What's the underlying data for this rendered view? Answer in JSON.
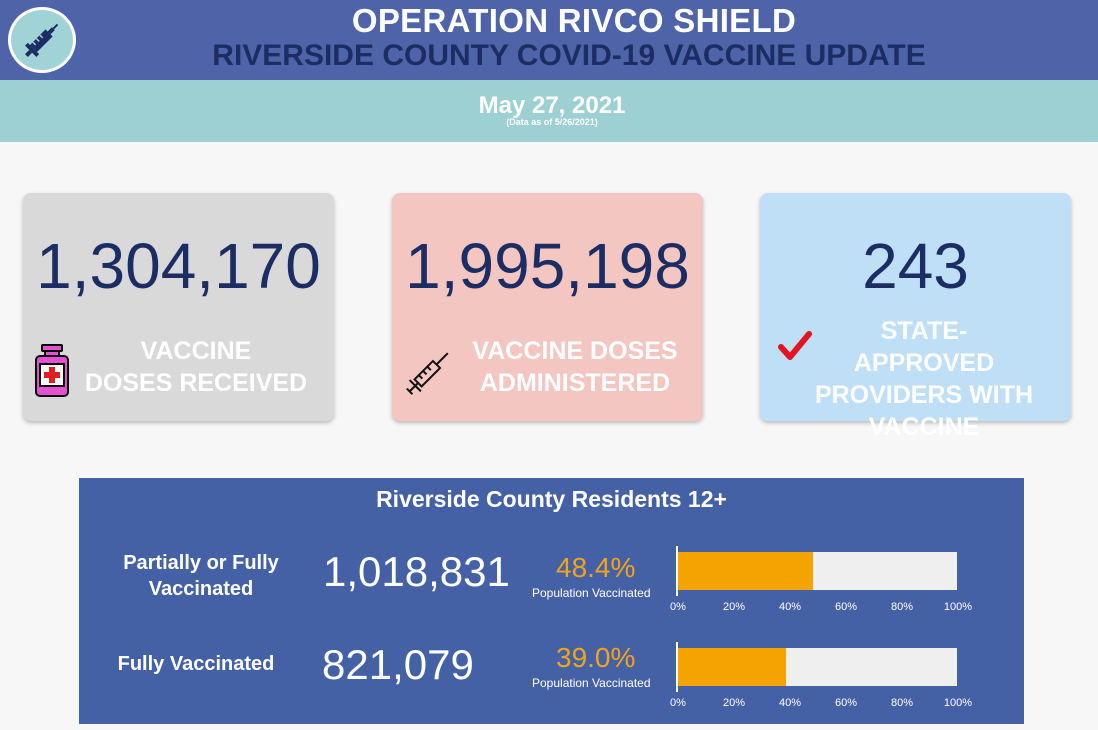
{
  "header": {
    "title": "OPERATION RIVCO SHIELD",
    "subtitle": "RIVERSIDE COUNTY COVID-19 VACCINE UPDATE",
    "logo_icon": "syringe-icon"
  },
  "date": {
    "label": "May 27, 2021",
    "note": "(Data as of 5/26/2021)"
  },
  "cards": [
    {
      "value": "1,304,170",
      "label_line1": "VACCINE",
      "label_line2": "DOSES RECEIVED",
      "icon": "vaccine-vial-icon",
      "color": "#d9d9d9"
    },
    {
      "value": "1,995,198",
      "label_line1": "VACCINE DOSES",
      "label_line2": "ADMINISTERED",
      "icon": "syringe-icon",
      "color": "#f4c6c2"
    },
    {
      "value": "243",
      "label_line1": "STATE-APPROVED",
      "label_line2": "PROVIDERS WITH",
      "label_line3": "VACCINE",
      "icon": "checkmark-icon",
      "color": "#bfdff7"
    }
  ],
  "residents": {
    "title": "Riverside County Residents 12+",
    "rows": [
      {
        "label_line1": "Partially or Fully",
        "label_line2": "Vaccinated",
        "value": "1,018,831",
        "pct_text": "48.4%",
        "pct_caption": "Population Vaccinated",
        "pct_value": 48.4
      },
      {
        "label_line1": "Fully Vaccinated",
        "value": "821,079",
        "pct_text": "39.0%",
        "pct_caption": "Population Vaccinated",
        "pct_value": 39.0
      }
    ],
    "axis_ticks": [
      "0%",
      "20%",
      "40%",
      "60%",
      "80%",
      "100%"
    ]
  },
  "colors": {
    "header_bg": "#4f63a8",
    "title_dark": "#1c2d63",
    "band": "#9dd0d3",
    "panel": "#4461a6",
    "accent_orange": "#f5a300"
  }
}
